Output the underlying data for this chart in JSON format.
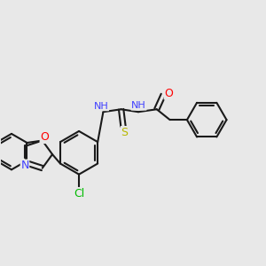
{
  "bg_color": "#e8e8e8",
  "bond_color": "#1a1a1a",
  "bond_width": 1.5,
  "atom_colors": {
    "N": "#4040ff",
    "O": "#ff0000",
    "S": "#b8b800",
    "Cl": "#00bb00",
    "H": "#6a9a9a",
    "C": "#1a1a1a"
  },
  "font_size": 8
}
